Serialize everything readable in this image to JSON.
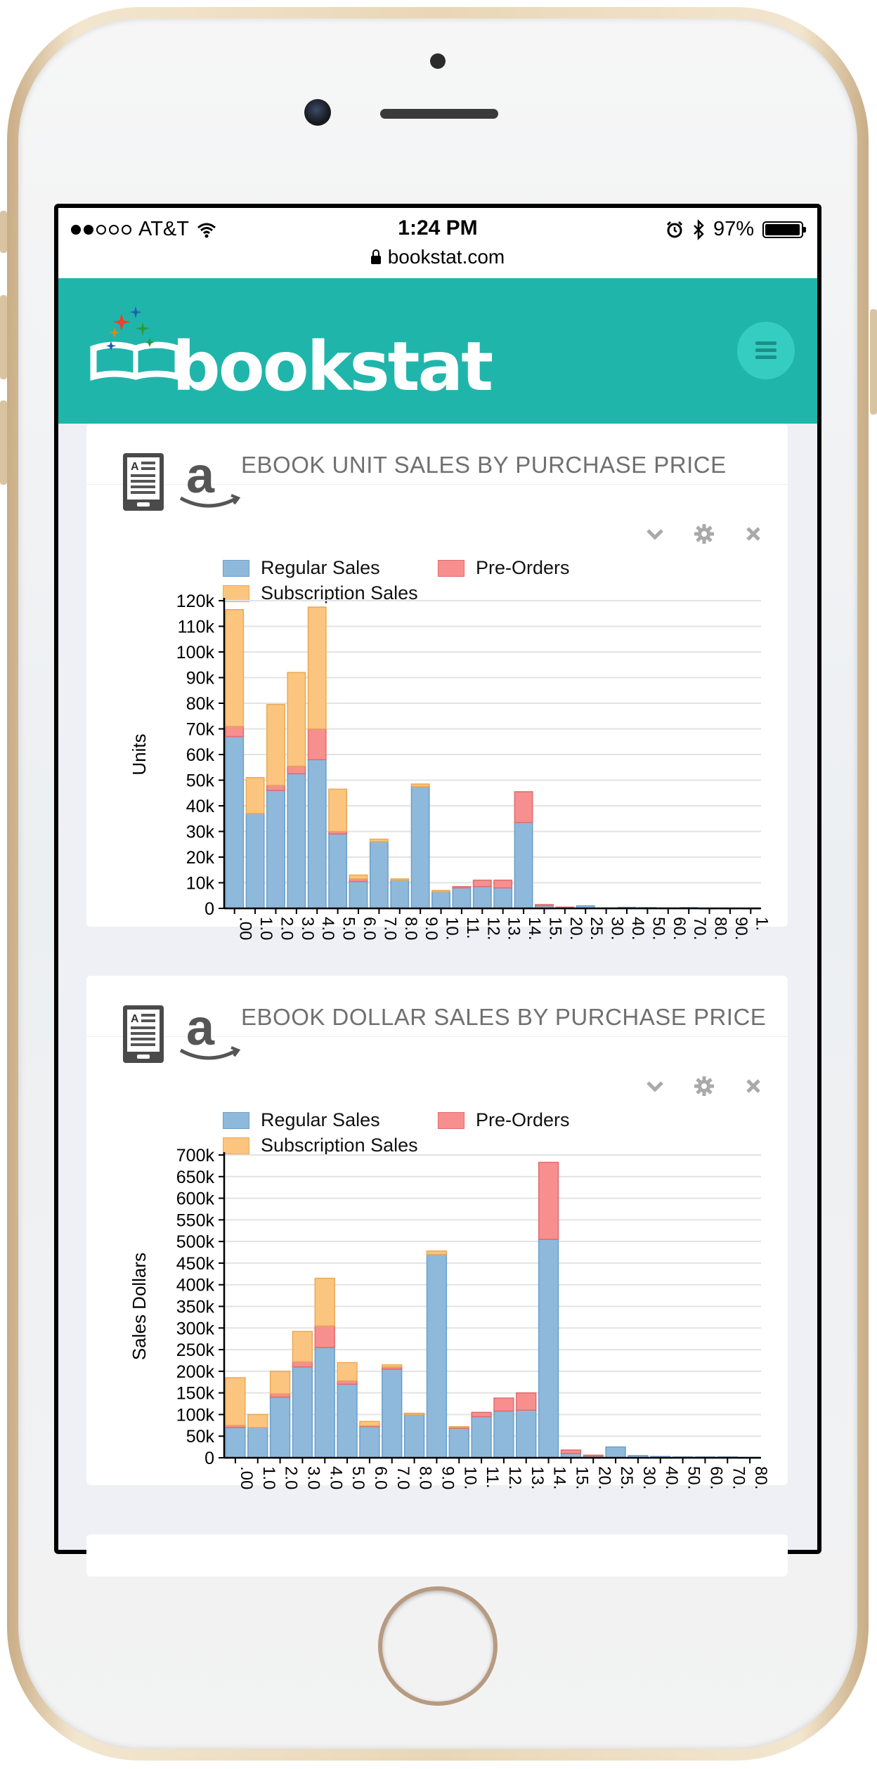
{
  "status_bar": {
    "carrier": "AT&T",
    "time": "1:24 PM",
    "battery": "97%",
    "battery_level": 0.97,
    "url": "bookstat.com"
  },
  "nav": {
    "logo_text": "bookstat"
  },
  "colors": {
    "nav_bg": "#20b5aa",
    "regular": "#8fb9db",
    "subscription": "#fcc57f",
    "preorder": "#f78f8f"
  },
  "legend": {
    "regular": "Regular Sales",
    "preorder": "Pre-Orders",
    "subscription": "Subscription Sales"
  },
  "cards": [
    {
      "title": "EBOOK UNIT SALES BY PURCHASE PRICE"
    },
    {
      "title": "EBOOK DOLLAR SALES BY PURCHASE PRICE"
    }
  ],
  "chart_data": [
    {
      "type": "bar",
      "stacked": true,
      "ylabel": "Units",
      "ylim": [
        0,
        120000
      ],
      "yticks": [
        "0",
        "10k",
        "20k",
        "30k",
        "40k",
        "50k",
        "60k",
        "70k",
        "80k",
        "90k",
        "100k",
        "110k",
        "120k"
      ],
      "categories": [
        ".00",
        "1.0",
        "2.0",
        "3.0",
        "4.0",
        "5.0",
        "6.0",
        "7.0",
        "8.0",
        "9.0",
        "10.",
        "11.",
        "12.",
        "13.",
        "14.",
        "15.",
        "20.",
        "25.",
        "30.",
        "40.",
        "50.",
        "60.",
        "70.",
        "80.",
        "90.",
        "1."
      ],
      "series": [
        {
          "name": "Regular Sales",
          "values": [
            67000,
            37000,
            46000,
            52500,
            58000,
            29000,
            10500,
            26000,
            11000,
            47500,
            6500,
            8000,
            8500,
            8000,
            33500,
            1000,
            300,
            1000,
            200,
            400,
            300,
            200,
            300,
            100,
            100,
            100
          ]
        },
        {
          "name": "Pre-Orders",
          "values": [
            4000,
            0,
            2000,
            3000,
            12000,
            1000,
            1000,
            0,
            0,
            0,
            0,
            500,
            2500,
            3000,
            12000,
            500,
            200,
            0,
            0,
            0,
            0,
            0,
            0,
            0,
            0,
            0
          ]
        },
        {
          "name": "Subscription Sales",
          "values": [
            45500,
            14000,
            31500,
            36500,
            47500,
            16500,
            1500,
            1000,
            500,
            1000,
            500,
            0,
            0,
            0,
            0,
            0,
            0,
            0,
            0,
            0,
            0,
            0,
            0,
            0,
            0,
            0
          ]
        }
      ]
    },
    {
      "type": "bar",
      "stacked": true,
      "ylabel": "Sales Dollars",
      "ylim": [
        0,
        700000
      ],
      "yticks": [
        "0",
        "50k",
        "100k",
        "150k",
        "200k",
        "250k",
        "300k",
        "350k",
        "400k",
        "450k",
        "500k",
        "550k",
        "600k",
        "650k",
        "700k"
      ],
      "categories": [
        ".00",
        "1.0",
        "2.0",
        "3.0",
        "4.0",
        "5.0",
        "6.0",
        "7.0",
        "8.0",
        "9.0",
        "10.",
        "11.",
        "12.",
        "13.",
        "14.",
        "15.",
        "20.",
        "25.",
        "30.",
        "40.",
        "50.",
        "60.",
        "70.",
        "80."
      ],
      "series": [
        {
          "name": "Regular Sales",
          "values": [
            70000,
            70000,
            140000,
            210000,
            255000,
            170000,
            72000,
            205000,
            100000,
            470000,
            68000,
            95000,
            108000,
            110000,
            505000,
            10000,
            4000,
            25000,
            5000,
            3000,
            2000,
            2000,
            2000,
            1000
          ]
        },
        {
          "name": "Pre-Orders",
          "values": [
            5000,
            0,
            8000,
            12000,
            50000,
            8000,
            2000,
            5000,
            0,
            0,
            2000,
            10000,
            30000,
            40000,
            178000,
            8000,
            2000,
            0,
            0,
            0,
            0,
            0,
            0,
            0
          ]
        },
        {
          "name": "Subscription Sales",
          "values": [
            110000,
            30000,
            52000,
            70000,
            110000,
            42000,
            10000,
            5000,
            3000,
            8000,
            2000,
            0,
            0,
            0,
            0,
            0,
            0,
            0,
            0,
            0,
            0,
            0,
            0,
            0
          ]
        }
      ]
    }
  ]
}
